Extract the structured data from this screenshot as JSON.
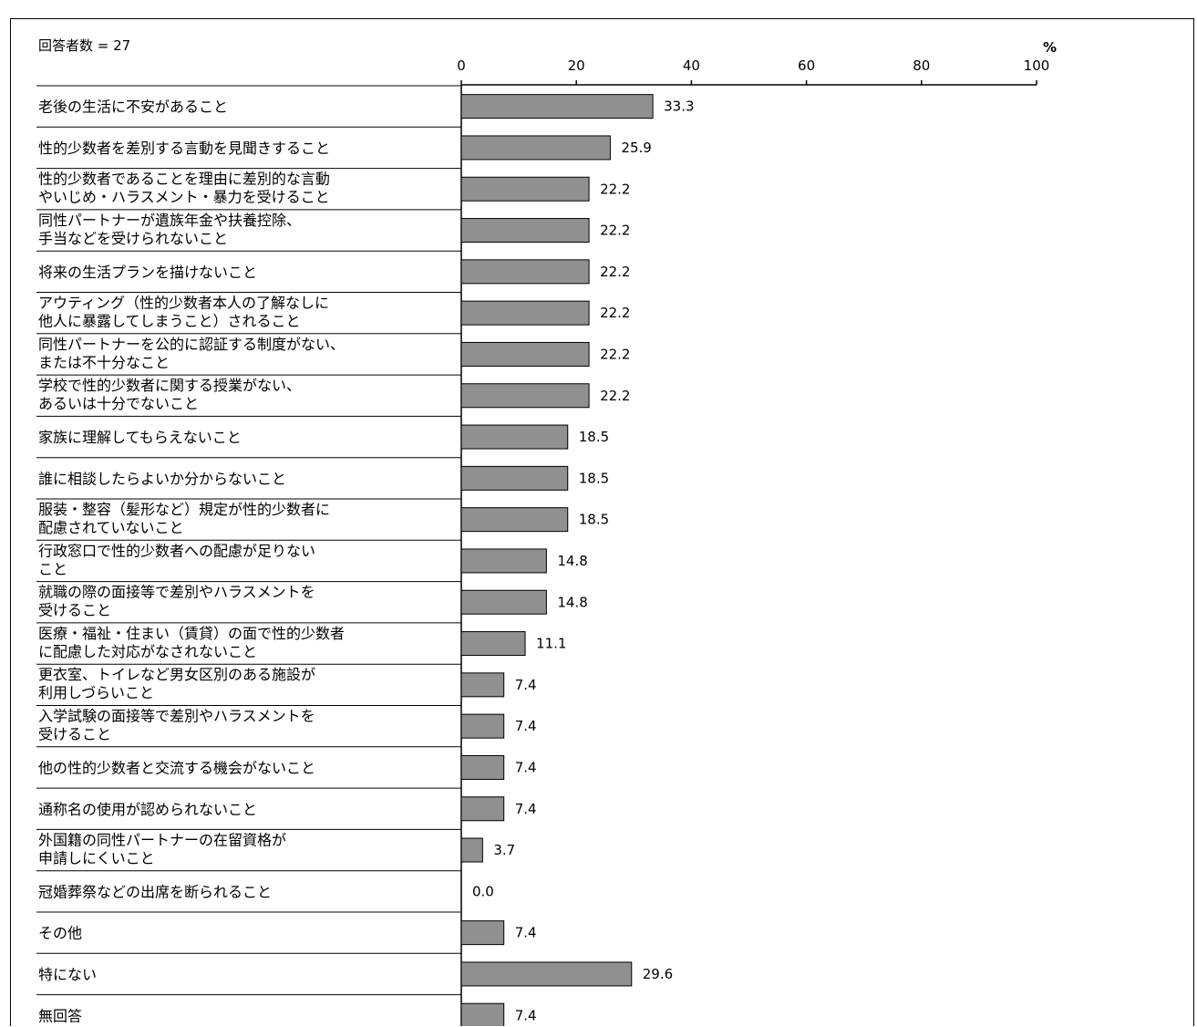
{
  "chart_data": {
    "type": "bar",
    "orientation": "horizontal",
    "respondents_label": "回答者数 = 27",
    "unit_label": "%",
    "xlim": [
      0,
      100
    ],
    "x_ticks": [
      0,
      20,
      40,
      60,
      80,
      100
    ],
    "bar_color": "#909090",
    "categories": [
      [
        "老後の生活に不安があること"
      ],
      [
        "性的少数者を差別する言動を見聞きすること"
      ],
      [
        "性的少数者であることを理由に差別的な言動",
        "やいじめ・ハラスメント・暴力を受けること"
      ],
      [
        "同性パートナーが遺族年金や扶養控除、",
        "手当などを受けられないこと"
      ],
      [
        "将来の生活プランを描けないこと"
      ],
      [
        "アウティング（性的少数者本人の了解なしに",
        "他人に暴露してしまうこと）されること"
      ],
      [
        "同性パートナーを公的に認証する制度がない、",
        "または不十分なこと"
      ],
      [
        "学校で性的少数者に関する授業がない、",
        "あるいは十分でないこと"
      ],
      [
        "家族に理解してもらえないこと"
      ],
      [
        "誰に相談したらよいか分からないこと"
      ],
      [
        "服装・整容（髪形など）規定が性的少数者に",
        "配慮されていないこと"
      ],
      [
        "行政窓口で性的少数者への配慮が足りない",
        "こと"
      ],
      [
        "就職の際の面接等で差別やハラスメントを",
        "受けること"
      ],
      [
        "医療・福祉・住まい（賃貸）の面で性的少数者",
        "に配慮した対応がなされないこと"
      ],
      [
        "更衣室、トイレなど男女区別のある施設が",
        "利用しづらいこと"
      ],
      [
        "入学試験の面接等で差別やハラスメントを",
        "受けること"
      ],
      [
        "他の性的少数者と交流する機会がないこと"
      ],
      [
        "通称名の使用が認められないこと"
      ],
      [
        "外国籍の同性パートナーの在留資格が",
        "申請しにくいこと"
      ],
      [
        "冠婚葬祭などの出席を断られること"
      ],
      [
        "その他"
      ],
      [
        "特にない"
      ],
      [
        "無回答"
      ]
    ],
    "values": [
      33.3,
      25.9,
      22.2,
      22.2,
      22.2,
      22.2,
      22.2,
      22.2,
      18.5,
      18.5,
      18.5,
      14.8,
      14.8,
      11.1,
      7.4,
      7.4,
      7.4,
      7.4,
      3.7,
      0.0,
      7.4,
      29.6,
      7.4
    ],
    "value_labels": [
      "33.3",
      "25.9",
      "22.2",
      "22.2",
      "22.2",
      "22.2",
      "22.2",
      "22.2",
      "18.5",
      "18.5",
      "18.5",
      "14.8",
      "14.8",
      "11.1",
      "7.4",
      "7.4",
      "7.4",
      "7.4",
      "3.7",
      "0.0",
      "7.4",
      "29.6",
      "7.4"
    ]
  }
}
